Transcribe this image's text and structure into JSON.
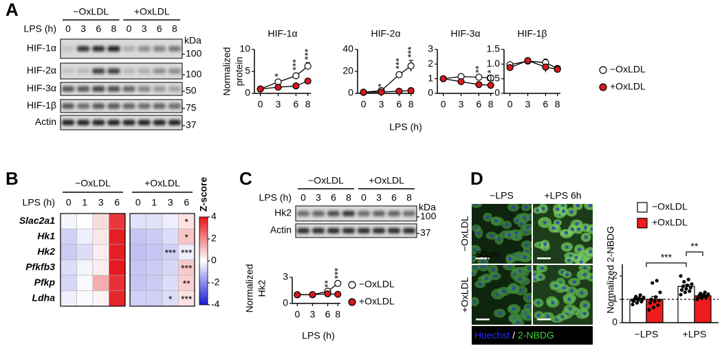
{
  "panel_labels": [
    "A",
    "B",
    "C",
    "D"
  ],
  "blot_A": {
    "groups": [
      "−OxLDL",
      "+OxLDL"
    ],
    "lps_label": "LPS (h)",
    "lanes": [
      "0",
      "3",
      "6",
      "8",
      "0",
      "3",
      "6",
      "8"
    ],
    "rows": [
      "HIF-1α",
      "HIF-2α",
      "HIF-3α",
      "HIF-1β",
      "Actin"
    ],
    "kda_label": "kDa",
    "markers": [
      "100",
      "100",
      "50",
      "75",
      "37"
    ]
  },
  "blot_C": {
    "groups": [
      "−OxLDL",
      "+OxLDL"
    ],
    "lps_label": "LPS (h)",
    "lanes": [
      "0",
      "3",
      "6",
      "8",
      "0",
      "3",
      "6",
      "8"
    ],
    "rows": [
      "Hk2",
      "Actin"
    ],
    "kda_label": "kDa",
    "markers": [
      "100",
      "37"
    ]
  },
  "micrograph_D": {
    "columns": [
      "−LPS",
      "+LPS 6h"
    ],
    "rows": [
      "−OxLDL",
      "+OxLDL"
    ],
    "scale_label": "50μm",
    "stain_1": "Hoechst",
    "separator": " / ",
    "stain_2": "2-NBDG"
  },
  "chart_data": [
    {
      "type": "line",
      "title": "HIF-1α",
      "ylabel": [
        "Normalized",
        "protein"
      ],
      "xlabel": "LPS (h)",
      "x": [
        0,
        3,
        6,
        8
      ],
      "xlim": [
        -1,
        8.5
      ],
      "xticks": [
        0,
        3,
        6,
        8
      ],
      "ylim": [
        0,
        10
      ],
      "yticks": [
        0,
        5,
        10
      ],
      "series": [
        {
          "color": "#ffffff",
          "values": [
            1,
            2.6,
            4,
            6.2
          ],
          "errors": [
            0.2,
            0.5,
            0.6,
            0.8
          ]
        },
        {
          "color": "#d7191c",
          "values": [
            1,
            1.4,
            1.7,
            2.8
          ]
        }
      ],
      "annotations": [
        null,
        "*",
        "***",
        "***"
      ]
    },
    {
      "type": "line",
      "title": "HIF-2α",
      "x": [
        0,
        3,
        6,
        8
      ],
      "xlim": [
        -1,
        8.5
      ],
      "xticks": [
        0,
        3,
        6,
        8
      ],
      "ylim": [
        0,
        40
      ],
      "yticks": [
        0,
        20,
        40
      ],
      "series": [
        {
          "color": "#ffffff",
          "values": [
            1,
            2.5,
            17,
            25
          ],
          "errors": [
            0.3,
            0.6,
            2.5,
            5
          ]
        },
        {
          "color": "#d7191c",
          "values": [
            1,
            1.2,
            2,
            2.5
          ]
        }
      ],
      "annotations": [
        null,
        "*",
        "***",
        "***"
      ]
    },
    {
      "type": "line",
      "title": "HIF-3α",
      "x": [
        0,
        3,
        6,
        8
      ],
      "xlim": [
        -1,
        8.5
      ],
      "xticks": [
        0,
        3,
        6,
        8
      ],
      "ylim": [
        0,
        3
      ],
      "yticks": [
        0,
        1,
        2,
        3
      ],
      "series": [
        {
          "color": "#ffffff",
          "values": [
            1,
            1.15,
            1.1,
            1.05
          ],
          "errors": [
            0.1,
            0.15,
            0.1,
            0.12
          ]
        },
        {
          "color": "#d7191c",
          "values": [
            1,
            0.8,
            0.6,
            0.55
          ]
        }
      ],
      "annotations": [
        null,
        null,
        "**",
        "*"
      ]
    },
    {
      "type": "line",
      "title": "HIF-1β",
      "x": [
        0,
        3,
        6,
        8
      ],
      "xlim": [
        -1,
        8.5
      ],
      "xticks": [
        0,
        3,
        6,
        8
      ],
      "ylim": [
        0,
        1.5
      ],
      "yticks": [
        0,
        0.5,
        {
          "value": 1,
          "label": "1.0"
        },
        1.5
      ],
      "series": [
        {
          "name": "−OxLDL",
          "color": "#ffffff",
          "values": [
            0.98,
            1.1,
            1.05,
            0.85
          ],
          "errors": [
            0.08,
            0.07,
            0.12,
            0.05
          ]
        },
        {
          "name": "+OxLDL",
          "color": "#d7191c",
          "values": [
            0.88,
            1.12,
            0.9,
            0.82
          ],
          "errors": [
            0.05,
            0.05,
            0.18,
            0.05
          ]
        }
      ]
    },
    {
      "type": "heatmap",
      "groups": [
        "−OxLDL",
        "+OxLDL"
      ],
      "xlabel": "LPS (h)",
      "columns": [
        "0",
        "1",
        "3",
        "6",
        "0",
        "1",
        "3",
        "6"
      ],
      "rows": [
        "Slac2a1",
        "Hk1",
        "Hk2",
        "Pfkfb3",
        "Pfkp",
        "Ldha"
      ],
      "z": [
        [
          -0.2,
          0.0,
          0.6,
          3.4,
          -0.5,
          -0.5,
          -0.3,
          0.5
        ],
        [
          -0.8,
          -0.3,
          0.4,
          3.8,
          -1.0,
          -0.9,
          -0.6,
          1.0
        ],
        [
          -0.9,
          -0.6,
          0.3,
          3.8,
          -1.1,
          -1.0,
          -0.8,
          -0.3
        ],
        [
          -0.6,
          -0.2,
          0.3,
          3.9,
          -1.0,
          -0.9,
          -0.7,
          0.9
        ],
        [
          -0.7,
          -0.1,
          1.4,
          3.5,
          -1.0,
          -0.9,
          -0.6,
          0.8
        ],
        [
          -0.3,
          -0.1,
          0.2,
          3.7,
          -0.8,
          -0.8,
          -0.6,
          0.5
        ]
      ],
      "annotations": [
        [
          null,
          null,
          null,
          null,
          null,
          null,
          null,
          "*"
        ],
        [
          null,
          null,
          null,
          null,
          null,
          null,
          null,
          "*"
        ],
        [
          null,
          null,
          null,
          null,
          null,
          null,
          "***",
          "***"
        ],
        [
          null,
          null,
          null,
          null,
          null,
          null,
          null,
          "***"
        ],
        [
          null,
          null,
          null,
          null,
          null,
          null,
          null,
          "**"
        ],
        [
          null,
          null,
          null,
          null,
          null,
          null,
          "*",
          "***"
        ]
      ],
      "zlim": [
        -4,
        4
      ],
      "zticks": [
        -4,
        -2,
        0,
        2,
        4
      ],
      "colorbar_label": "Z-score",
      "colormap": [
        "#1a1ad6",
        "#ffffff",
        "#e3141a"
      ]
    },
    {
      "type": "line",
      "ylabel": [
        "Normalized",
        "Hk2"
      ],
      "xlabel": "LPS (h)",
      "x": [
        0,
        3,
        6,
        8
      ],
      "xlim": [
        -1,
        8.5
      ],
      "xticks": [
        0,
        3,
        6,
        8
      ],
      "ylim": [
        0,
        3
      ],
      "yticks": [
        0,
        3
      ],
      "series": [
        {
          "name": "−OxLDL",
          "color": "#ffffff",
          "values": [
            1,
            1,
            1.4,
            2.3
          ],
          "errors": [
            0.05,
            0.05,
            0.1,
            0.2
          ]
        },
        {
          "name": "+OxLDL",
          "color": "#d7191c",
          "values": [
            1,
            1.02,
            1.1,
            1.05
          ]
        }
      ],
      "annotations": [
        null,
        null,
        "**",
        "***"
      ]
    },
    {
      "type": "bar",
      "ylabel": "Normalized 2-NBDG",
      "categories": [
        "−LPS",
        "+LPS"
      ],
      "ylim": [
        0,
        2.5
      ],
      "yticks": [
        0,
        1,
        2
      ],
      "hline": 1,
      "brackets": [
        "***",
        "**"
      ],
      "series": [
        {
          "name": "−OxLDL",
          "color": "#ffffff",
          "values": [
            1.0,
            1.55
          ],
          "errors": [
            0.04,
            0.07
          ],
          "points": [
            [
              0.78,
              0.85,
              0.9,
              0.93,
              0.97,
              1.0,
              1.02,
              1.05,
              1.08,
              1.12,
              1.18,
              0.95
            ],
            [
              1.2,
              1.3,
              1.35,
              1.4,
              1.45,
              1.5,
              1.55,
              1.6,
              1.65,
              1.75,
              1.85,
              2.0
            ]
          ]
        },
        {
          "name": "+OxLDL",
          "color": "#ee1c1c",
          "values": [
            1.0,
            1.15
          ],
          "errors": [
            0.12,
            0.03
          ],
          "points": [
            [
              0.55,
              0.65,
              0.75,
              0.85,
              0.9,
              0.95,
              1.0,
              1.1,
              1.3,
              1.7,
              1.8
            ],
            [
              1.0,
              1.05,
              1.08,
              1.1,
              1.12,
              1.15,
              1.18,
              1.2,
              1.22,
              1.25,
              1.3
            ]
          ]
        }
      ]
    }
  ]
}
